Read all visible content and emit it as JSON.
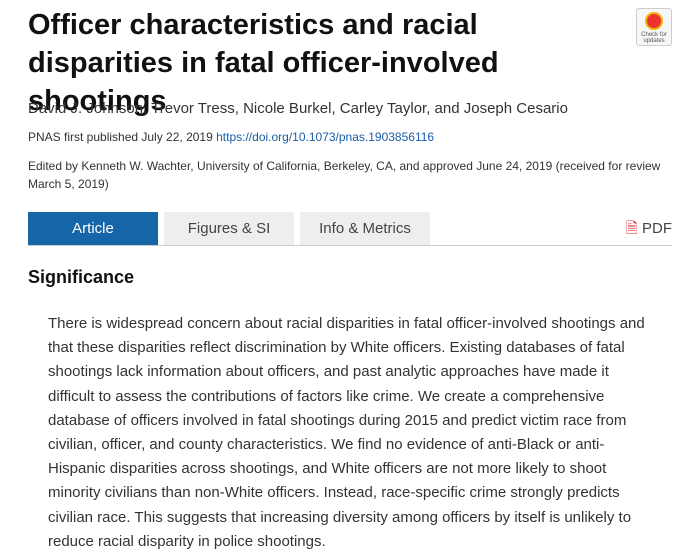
{
  "header": {
    "title": "Officer characteristics and racial disparities in fatal officer-involved shootings",
    "badge": "Check for updates",
    "authors": "David J. Johnson, Trevor Tress, Nicole Burkel, Carley Taylor, and Joseph Cesario",
    "published": "PNAS first published July 22, 2019",
    "doi": "https://doi.org/10.1073/pnas.1903856116",
    "edited": "Edited by Kenneth W. Wachter, University of California, Berkeley, CA, and approved June 24, 2019 (received for review March 5, 2019)"
  },
  "tabs": [
    "Article",
    "Figures & SI",
    "Info & Metrics"
  ],
  "pdf": "PDF",
  "section": {
    "heading": "Significance",
    "body": "There is widespread concern about racial disparities in fatal officer-involved shootings and that these disparities reflect discrimination by White officers. Existing databases of fatal shootings lack information about officers, and past analytic approaches have made it difficult to assess the contributions of factors like crime. We create a comprehensive database of officers involved in fatal shootings during 2015 and predict victim race from civilian, officer, and county characteristics. We find no evidence of anti-Black or anti-Hispanic disparities across shootings, and White officers are not more likely to shoot minority civilians than non-White officers. Instead, race-specific crime strongly predicts civilian race. This suggests that increasing diversity among officers by itself is unlikely to reduce racial disparity in police shootings."
  }
}
